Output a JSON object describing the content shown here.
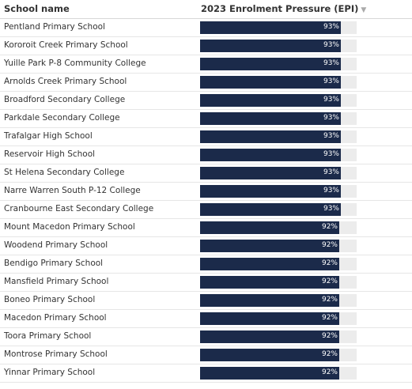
{
  "header": {
    "school_col": "School name",
    "epi_col": "2023 Enrolment Pressure (EPI)",
    "sort_icon": "triangle-down-icon"
  },
  "rows": [
    {
      "name": "Pentland Primary School",
      "epi_label": "93%",
      "epi": 93
    },
    {
      "name": "Kororoit Creek Primary School",
      "epi_label": "93%",
      "epi": 93
    },
    {
      "name": "Yuille Park P-8 Community College",
      "epi_label": "93%",
      "epi": 93
    },
    {
      "name": "Arnolds Creek Primary School",
      "epi_label": "93%",
      "epi": 93
    },
    {
      "name": "Broadford Secondary College",
      "epi_label": "93%",
      "epi": 93
    },
    {
      "name": "Parkdale Secondary College",
      "epi_label": "93%",
      "epi": 93
    },
    {
      "name": "Trafalgar High School",
      "epi_label": "93%",
      "epi": 93
    },
    {
      "name": "Reservoir High School",
      "epi_label": "93%",
      "epi": 93
    },
    {
      "name": "St Helena Secondary College",
      "epi_label": "93%",
      "epi": 93
    },
    {
      "name": "Narre Warren South P-12 College",
      "epi_label": "93%",
      "epi": 93
    },
    {
      "name": "Cranbourne East Secondary College",
      "epi_label": "93%",
      "epi": 93
    },
    {
      "name": "Mount Macedon Primary School",
      "epi_label": "92%",
      "epi": 92
    },
    {
      "name": "Woodend Primary School",
      "epi_label": "92%",
      "epi": 92
    },
    {
      "name": "Bendigo Primary School",
      "epi_label": "92%",
      "epi": 92
    },
    {
      "name": "Mansfield Primary School",
      "epi_label": "92%",
      "epi": 92
    },
    {
      "name": "Boneo Primary School",
      "epi_label": "92%",
      "epi": 92
    },
    {
      "name": "Macedon Primary School",
      "epi_label": "92%",
      "epi": 92
    },
    {
      "name": "Toora Primary School",
      "epi_label": "92%",
      "epi": 92
    },
    {
      "name": "Montrose Primary School",
      "epi_label": "92%",
      "epi": 92
    },
    {
      "name": "Yinnar Primary School",
      "epi_label": "92%",
      "epi": 92
    }
  ],
  "colors": {
    "bar_fill": "#1b2a4a",
    "bar_track": "#ececec"
  }
}
